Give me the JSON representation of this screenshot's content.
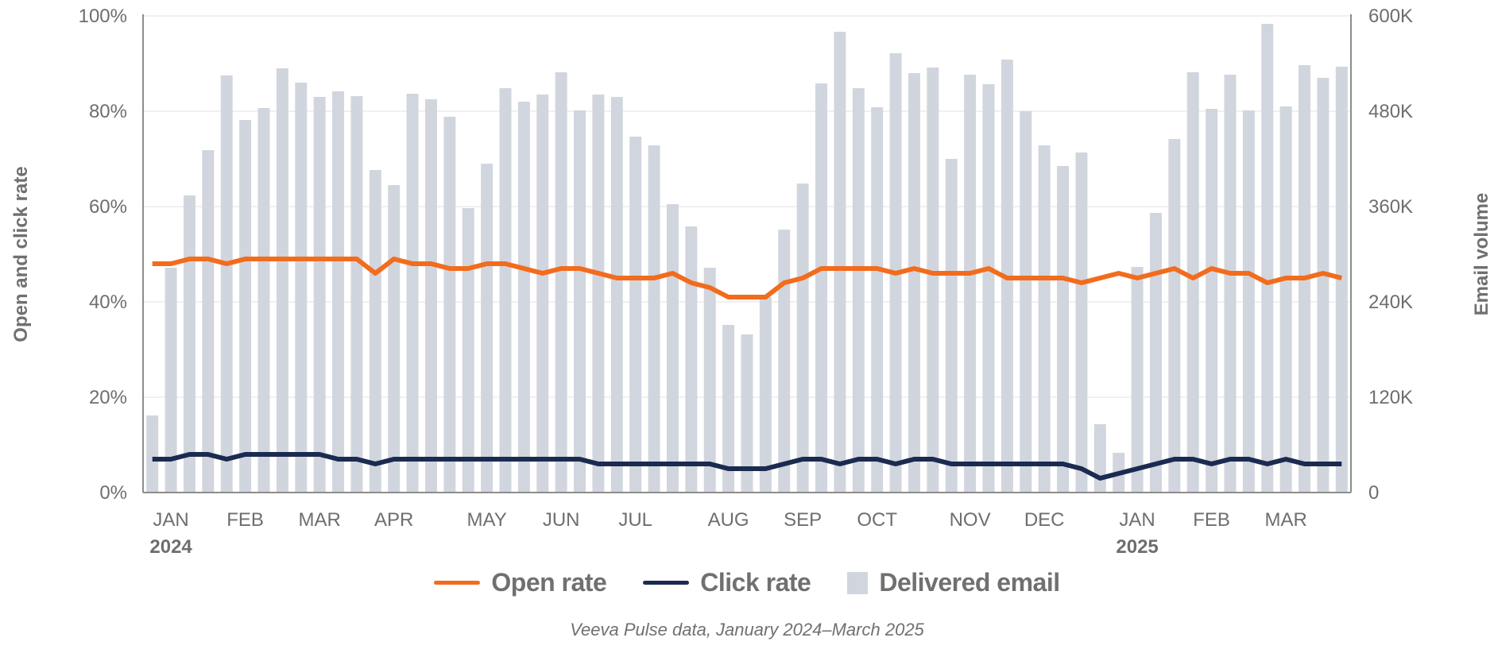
{
  "chart_data": {
    "type": "bar",
    "title": "",
    "source_note": "Veeva Pulse data, January 2024–March 2025",
    "y_left": {
      "label": "Open and click rate",
      "ticks": [
        "0%",
        "20%",
        "40%",
        "60%",
        "80%",
        "100%"
      ],
      "range": [
        0,
        100
      ]
    },
    "y_right": {
      "label": "Email volume",
      "ticks": [
        "0",
        "120K",
        "240K",
        "360K",
        "480K",
        "600K"
      ],
      "range": [
        0,
        600
      ]
    },
    "x_month_labels": [
      {
        "label": "JAN",
        "week_index": 1,
        "year": "2024"
      },
      {
        "label": "FEB",
        "week_index": 5
      },
      {
        "label": "MAR",
        "week_index": 9
      },
      {
        "label": "APR",
        "week_index": 13
      },
      {
        "label": "MAY",
        "week_index": 18
      },
      {
        "label": "JUN",
        "week_index": 22
      },
      {
        "label": "JUL",
        "week_index": 26
      },
      {
        "label": "AUG",
        "week_index": 31
      },
      {
        "label": "SEP",
        "week_index": 35
      },
      {
        "label": "OCT",
        "week_index": 39
      },
      {
        "label": "NOV",
        "week_index": 44
      },
      {
        "label": "DEC",
        "week_index": 48
      },
      {
        "label": "JAN",
        "week_index": 53,
        "year": "2025"
      },
      {
        "label": "FEB",
        "week_index": 57
      },
      {
        "label": "MAR",
        "week_index": 61
      }
    ],
    "series": [
      {
        "name": "Delivered email",
        "kind": "bar",
        "axis": "right",
        "unit": "K",
        "color": "#d1d5de",
        "values": [
          97,
          283,
          374,
          431,
          525,
          469,
          484,
          534,
          516,
          498,
          505,
          499,
          406,
          387,
          502,
          495,
          473,
          358,
          414,
          509,
          492,
          501,
          529,
          481,
          501,
          498,
          448,
          437,
          363,
          335,
          283,
          211,
          199,
          246,
          331,
          389,
          515,
          580,
          509,
          485,
          553,
          528,
          535,
          420,
          526,
          514,
          545,
          480,
          437,
          411,
          428,
          86,
          50,
          284,
          352,
          445,
          529,
          483,
          526,
          481,
          590,
          486,
          538,
          522,
          536
        ]
      },
      {
        "name": "Open rate",
        "kind": "line",
        "axis": "left",
        "unit": "%",
        "color": "#f26c1d",
        "values": [
          48,
          48,
          49,
          49,
          48,
          49,
          49,
          49,
          49,
          49,
          49,
          49,
          46,
          49,
          48,
          48,
          47,
          47,
          48,
          48,
          47,
          46,
          47,
          47,
          46,
          45,
          45,
          45,
          46,
          44,
          43,
          41,
          41,
          41,
          44,
          45,
          47,
          47,
          47,
          47,
          46,
          47,
          46,
          46,
          46,
          47,
          45,
          45,
          45,
          45,
          44,
          45,
          46,
          45,
          46,
          47,
          45,
          47,
          46,
          46,
          44,
          45,
          45,
          46,
          45
        ]
      },
      {
        "name": "Click rate",
        "kind": "line",
        "axis": "left",
        "unit": "%",
        "color": "#1b2b50",
        "values": [
          7,
          7,
          8,
          8,
          7,
          8,
          8,
          8,
          8,
          8,
          7,
          7,
          6,
          7,
          7,
          7,
          7,
          7,
          7,
          7,
          7,
          7,
          7,
          7,
          6,
          6,
          6,
          6,
          6,
          6,
          6,
          5,
          5,
          5,
          6,
          7,
          7,
          6,
          7,
          7,
          6,
          7,
          7,
          6,
          6,
          6,
          6,
          6,
          6,
          6,
          5,
          3,
          4,
          5,
          6,
          7,
          7,
          6,
          7,
          7,
          6,
          7,
          6,
          6,
          6
        ]
      }
    ],
    "legend": {
      "placement": "bottom-center",
      "items": [
        "Open rate",
        "Click rate",
        "Delivered email"
      ]
    },
    "grid": true
  }
}
